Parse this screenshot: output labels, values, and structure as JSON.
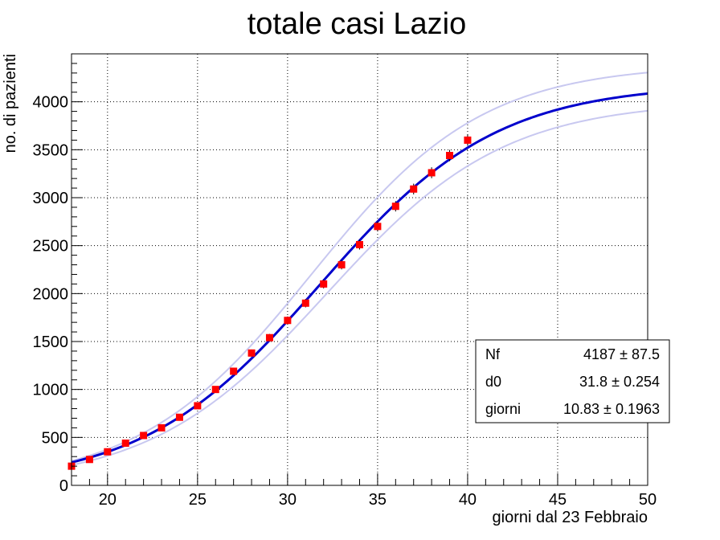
{
  "chart_data": {
    "type": "scatter",
    "title": "totale casi Lazio",
    "xlabel": "giorni dal 23 Febbraio",
    "ylabel": "no. di pazienti",
    "xlim": [
      18,
      50
    ],
    "ylim": [
      0,
      4500
    ],
    "xticks": [
      20,
      25,
      30,
      35,
      40,
      45,
      50
    ],
    "yticks": [
      0,
      500,
      1000,
      1500,
      2000,
      2500,
      3000,
      3500,
      4000
    ],
    "grid": true,
    "colors": {
      "points": "#ff0000",
      "fit": "#0000cc",
      "band": "#c8c8f0"
    },
    "points": {
      "x": [
        18,
        19,
        20,
        21,
        22,
        23,
        24,
        25,
        26,
        27,
        28,
        29,
        30,
        31,
        32,
        33,
        34,
        35,
        36,
        37,
        38,
        39,
        40
      ],
      "y": [
        200,
        270,
        350,
        440,
        520,
        600,
        710,
        830,
        1000,
        1190,
        1380,
        1540,
        1720,
        1900,
        2100,
        2300,
        2510,
        2700,
        2910,
        3090,
        3260,
        3440,
        3600
      ],
      "yerr": [
        14,
        16,
        19,
        21,
        23,
        24,
        27,
        29,
        32,
        34,
        37,
        39,
        41,
        44,
        46,
        48,
        50,
        52,
        54,
        56,
        57,
        59,
        60
      ]
    },
    "fit": {
      "model": "logistic",
      "Nf": 4187,
      "d0": 31.8,
      "giorni": 10.83,
      "band_upper": {
        "Nf": 4390,
        "d0": 31.3,
        "giorni": 10.5
      },
      "band_lower": {
        "Nf": 4010,
        "d0": 32.2,
        "giorni": 10.8
      },
      "x_range": [
        18,
        50
      ]
    },
    "stats_box": [
      {
        "name": "Nf",
        "value": "4187 ±  87.5"
      },
      {
        "name": "d0",
        "value": "31.8 ± 0.254"
      },
      {
        "name": "giorni",
        "value": "10.83 ± 0.1963"
      }
    ],
    "stats_box_position": "bottom-right"
  }
}
